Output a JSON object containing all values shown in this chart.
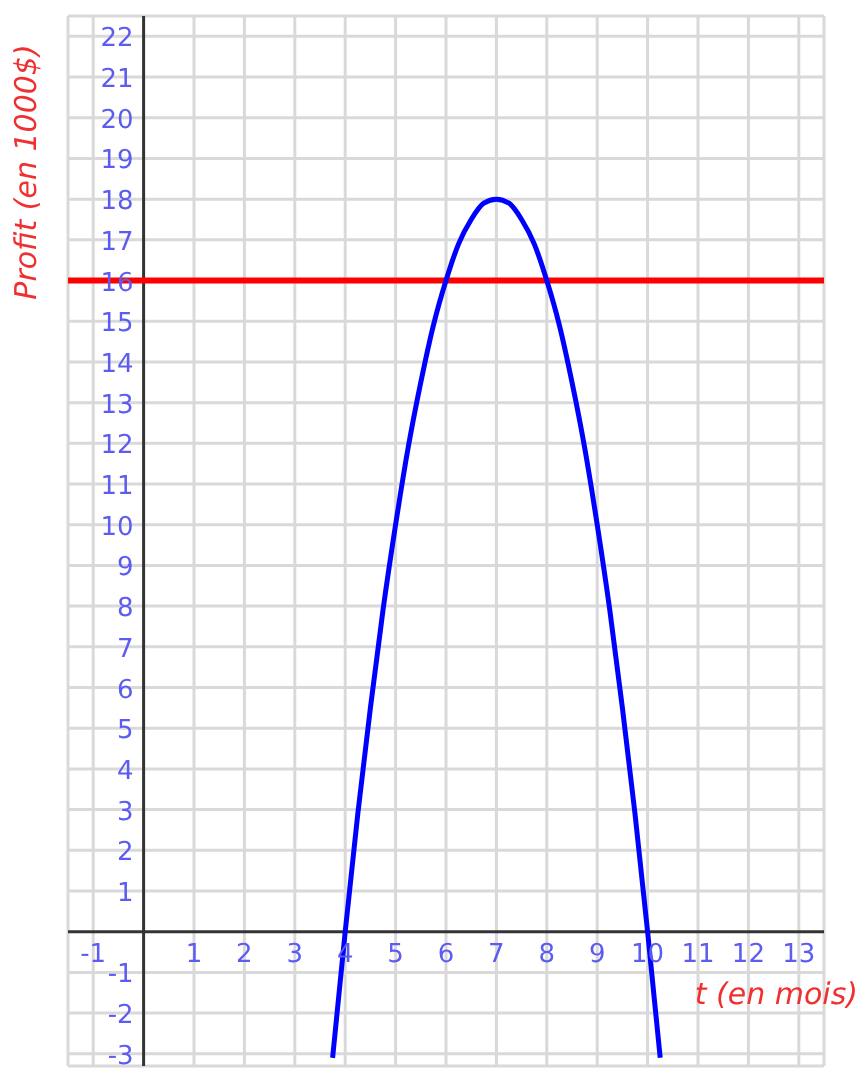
{
  "chart_data": {
    "type": "line",
    "xlabel": "t (en mois)",
    "ylabel": "Profit (en 1000$)",
    "x": [
      3.75,
      4,
      4.25,
      4.5,
      4.75,
      5,
      5.25,
      5.5,
      5.75,
      6,
      6.25,
      6.5,
      6.75,
      7,
      7.25,
      7.5,
      7.75,
      8,
      8.25,
      8.5,
      8.75,
      9,
      9.25,
      9.5,
      9.75,
      10,
      10.25
    ],
    "series": [
      {
        "color": "#0000ff",
        "values": [
          -3.1,
          0,
          2.9,
          5.5,
          7.9,
          10,
          11.9,
          13.5,
          14.9,
          16,
          16.9,
          17.5,
          17.9,
          18,
          17.9,
          17.5,
          16.9,
          16,
          14.9,
          13.5,
          11.9,
          10,
          7.9,
          5.5,
          2.9,
          0,
          -3.1
        ]
      }
    ],
    "xlim": [
      -1.5,
      13.5
    ],
    "ylim": [
      -3.3,
      22.5
    ],
    "xticks": [
      -1,
      1,
      2,
      3,
      4,
      5,
      6,
      7,
      8,
      9,
      10,
      11,
      12,
      13
    ],
    "yticks": [
      -3,
      -2,
      -1,
      1,
      2,
      3,
      4,
      5,
      6,
      7,
      8,
      9,
      10,
      11,
      12,
      13,
      14,
      15,
      16,
      17,
      18,
      19,
      20,
      21,
      22
    ],
    "ref_lines": [
      {
        "axis": "y",
        "value": 16,
        "color": "#ff0000"
      }
    ],
    "grid": true,
    "marker": "none",
    "line_style": "solid"
  }
}
